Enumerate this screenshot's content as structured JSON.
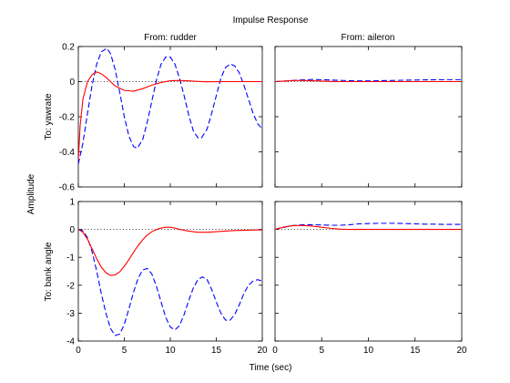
{
  "chart_data": {
    "type": "line",
    "title": "Impulse Response",
    "xlabel": "Time (sec)",
    "ylabel": "Amplitude",
    "xlim": [
      0,
      20
    ],
    "x_ticks": [
      "0",
      "5",
      "10",
      "15",
      "20"
    ],
    "grid": false,
    "inputs": [
      "From: rudder",
      "From: aileron"
    ],
    "outputs": [
      "To: yawrate",
      "To: bank angle"
    ],
    "colors": {
      "dashed": "#0000ff",
      "solid": "#ff0000",
      "reference": "#000000"
    },
    "panels": [
      {
        "row": 0,
        "col": 0,
        "ylim": [
          -0.6,
          0.2
        ],
        "y_ticks": [
          0.2,
          0,
          -0.2,
          -0.4,
          -0.6
        ],
        "y_tick_labels": [
          "0.2",
          "0",
          "-0.2",
          "-0.4",
          "-0.6"
        ],
        "series": [
          {
            "style": "dashed",
            "color": "#0000ff",
            "points": [
              [
                0,
                -0.47
              ],
              [
                0.5,
                -0.35
              ],
              [
                1,
                -0.18
              ],
              [
                1.5,
                -0.02
              ],
              [
                2,
                0.1
              ],
              [
                2.5,
                0.17
              ],
              [
                3.1,
                0.19
              ],
              [
                3.5,
                0.16
              ],
              [
                4,
                0.07
              ],
              [
                4.5,
                -0.06
              ],
              [
                5,
                -0.2
              ],
              [
                5.5,
                -0.31
              ],
              [
                6,
                -0.37
              ],
              [
                6.4,
                -0.38
              ],
              [
                7,
                -0.33
              ],
              [
                7.5,
                -0.23
              ],
              [
                8,
                -0.11
              ],
              [
                8.5,
                0.01
              ],
              [
                9,
                0.1
              ],
              [
                9.5,
                0.14
              ],
              [
                10,
                0.14
              ],
              [
                10.5,
                0.1
              ],
              [
                11,
                0.02
              ],
              [
                11.5,
                -0.08
              ],
              [
                12,
                -0.19
              ],
              [
                12.5,
                -0.28
              ],
              [
                13,
                -0.32
              ],
              [
                13.4,
                -0.32
              ],
              [
                14,
                -0.27
              ],
              [
                14.5,
                -0.18
              ],
              [
                15,
                -0.08
              ],
              [
                15.5,
                0.02
              ],
              [
                16,
                0.08
              ],
              [
                16.5,
                0.1
              ],
              [
                17,
                0.09
              ],
              [
                17.5,
                0.05
              ],
              [
                18,
                -0.02
              ],
              [
                18.5,
                -0.1
              ],
              [
                19,
                -0.18
              ],
              [
                19.5,
                -0.24
              ],
              [
                20,
                -0.27
              ]
            ]
          },
          {
            "style": "solid",
            "color": "#ff0000",
            "points": [
              [
                0,
                -0.45
              ],
              [
                0.2,
                -0.25
              ],
              [
                0.5,
                -0.1
              ],
              [
                1,
                0.0
              ],
              [
                1.5,
                0.04
              ],
              [
                2,
                0.055
              ],
              [
                2.5,
                0.045
              ],
              [
                3,
                0.025
              ],
              [
                3.5,
                0.0
              ],
              [
                4,
                -0.025
              ],
              [
                5,
                -0.05
              ],
              [
                6,
                -0.055
              ],
              [
                7,
                -0.04
              ],
              [
                8,
                -0.02
              ],
              [
                9,
                -0.005
              ],
              [
                10,
                0.005
              ],
              [
                11,
                0.007
              ],
              [
                12,
                0.004
              ],
              [
                13,
                0.001
              ],
              [
                14,
                -0.001
              ],
              [
                16,
                0.0
              ],
              [
                20,
                0.0
              ]
            ]
          }
        ]
      },
      {
        "row": 0,
        "col": 1,
        "ylim": [
          -0.6,
          0.2
        ],
        "y_ticks": [
          0.2,
          0,
          -0.2,
          -0.4,
          -0.6
        ],
        "y_tick_labels": [
          "",
          "",
          "",
          "",
          ""
        ],
        "series": [
          {
            "style": "dashed",
            "color": "#0000ff",
            "points": [
              [
                0,
                0.0
              ],
              [
                1,
                0.003
              ],
              [
                2,
                0.007
              ],
              [
                3,
                0.01
              ],
              [
                4,
                0.012
              ],
              [
                5,
                0.011
              ],
              [
                6,
                0.009
              ],
              [
                7,
                0.007
              ],
              [
                8,
                0.005
              ],
              [
                10,
                0.004
              ],
              [
                12,
                0.006
              ],
              [
                14,
                0.008
              ],
              [
                16,
                0.01
              ],
              [
                18,
                0.011
              ],
              [
                20,
                0.011
              ]
            ]
          },
          {
            "style": "solid",
            "color": "#ff0000",
            "points": [
              [
                0,
                0.0
              ],
              [
                1,
                0.003
              ],
              [
                2,
                0.006
              ],
              [
                3,
                0.006
              ],
              [
                4,
                0.005
              ],
              [
                5,
                0.003
              ],
              [
                6,
                0.001
              ],
              [
                7,
                0.0
              ],
              [
                20,
                0.0
              ]
            ]
          }
        ]
      },
      {
        "row": 1,
        "col": 0,
        "ylim": [
          -4,
          1
        ],
        "y_ticks": [
          1,
          0,
          -1,
          -2,
          -3,
          -4
        ],
        "y_tick_labels": [
          "1",
          "0",
          "-1",
          "-2",
          "-3",
          "-4"
        ],
        "series": [
          {
            "style": "dashed",
            "color": "#0000ff",
            "points": [
              [
                0,
                0.0
              ],
              [
                0.5,
                -0.05
              ],
              [
                1,
                -0.3
              ],
              [
                1.5,
                -0.8
              ],
              [
                2,
                -1.5
              ],
              [
                2.5,
                -2.3
              ],
              [
                3,
                -3.0
              ],
              [
                3.5,
                -3.55
              ],
              [
                4,
                -3.8
              ],
              [
                4.5,
                -3.75
              ],
              [
                5,
                -3.4
              ],
              [
                5.5,
                -2.85
              ],
              [
                6,
                -2.25
              ],
              [
                6.5,
                -1.75
              ],
              [
                7,
                -1.45
              ],
              [
                7.5,
                -1.4
              ],
              [
                8,
                -1.6
              ],
              [
                8.5,
                -2.05
              ],
              [
                9,
                -2.6
              ],
              [
                9.5,
                -3.15
              ],
              [
                10,
                -3.5
              ],
              [
                10.5,
                -3.6
              ],
              [
                11,
                -3.45
              ],
              [
                11.5,
                -3.05
              ],
              [
                12,
                -2.55
              ],
              [
                12.5,
                -2.1
              ],
              [
                13,
                -1.8
              ],
              [
                13.5,
                -1.7
              ],
              [
                14,
                -1.8
              ],
              [
                14.5,
                -2.15
              ],
              [
                15,
                -2.6
              ],
              [
                15.5,
                -3.0
              ],
              [
                16,
                -3.25
              ],
              [
                16.5,
                -3.25
              ],
              [
                17,
                -3.05
              ],
              [
                17.5,
                -2.7
              ],
              [
                18,
                -2.3
              ],
              [
                18.5,
                -2.0
              ],
              [
                19,
                -1.85
              ],
              [
                19.5,
                -1.8
              ],
              [
                20,
                -1.85
              ]
            ]
          },
          {
            "style": "solid",
            "color": "#ff0000",
            "points": [
              [
                0,
                0.0
              ],
              [
                0.5,
                -0.1
              ],
              [
                1,
                -0.35
              ],
              [
                1.5,
                -0.7
              ],
              [
                2,
                -1.05
              ],
              [
                2.5,
                -1.35
              ],
              [
                3,
                -1.55
              ],
              [
                3.5,
                -1.65
              ],
              [
                4,
                -1.63
              ],
              [
                4.5,
                -1.52
              ],
              [
                5,
                -1.32
              ],
              [
                5.5,
                -1.08
              ],
              [
                6,
                -0.82
              ],
              [
                6.5,
                -0.58
              ],
              [
                7,
                -0.37
              ],
              [
                7.5,
                -0.2
              ],
              [
                8,
                -0.08
              ],
              [
                8.5,
                0.0
              ],
              [
                9,
                0.05
              ],
              [
                9.5,
                0.08
              ],
              [
                10,
                0.08
              ],
              [
                10.5,
                0.05
              ],
              [
                11,
                0.0
              ],
              [
                12,
                -0.06
              ],
              [
                13,
                -0.1
              ],
              [
                14,
                -0.1
              ],
              [
                15,
                -0.08
              ],
              [
                16,
                -0.06
              ],
              [
                17,
                -0.04
              ],
              [
                18,
                -0.03
              ],
              [
                19,
                -0.02
              ],
              [
                20,
                -0.02
              ]
            ]
          }
        ]
      },
      {
        "row": 1,
        "col": 1,
        "ylim": [
          -4,
          1
        ],
        "y_ticks": [
          1,
          0,
          -1,
          -2,
          -3,
          -4
        ],
        "y_tick_labels": [
          "",
          "",
          "",
          "",
          "",
          ""
        ],
        "series": [
          {
            "style": "dashed",
            "color": "#0000ff",
            "points": [
              [
                0,
                0.0
              ],
              [
                1,
                0.08
              ],
              [
                2,
                0.14
              ],
              [
                3,
                0.17
              ],
              [
                4,
                0.17
              ],
              [
                5,
                0.16
              ],
              [
                6,
                0.15
              ],
              [
                7,
                0.15
              ],
              [
                8,
                0.17
              ],
              [
                9,
                0.2
              ],
              [
                10,
                0.21
              ],
              [
                11,
                0.22
              ],
              [
                12,
                0.22
              ],
              [
                13,
                0.22
              ],
              [
                14,
                0.21
              ],
              [
                15,
                0.2
              ],
              [
                16,
                0.19
              ],
              [
                17,
                0.19
              ],
              [
                18,
                0.18
              ],
              [
                19,
                0.18
              ],
              [
                20,
                0.18
              ]
            ]
          },
          {
            "style": "solid",
            "color": "#ff0000",
            "points": [
              [
                0,
                0.0
              ],
              [
                1,
                0.09
              ],
              [
                2,
                0.14
              ],
              [
                3,
                0.14
              ],
              [
                4,
                0.12
              ],
              [
                5,
                0.08
              ],
              [
                6,
                0.04
              ],
              [
                7,
                0.01
              ],
              [
                8,
                0.0
              ],
              [
                20,
                0.0
              ]
            ]
          }
        ]
      }
    ]
  }
}
